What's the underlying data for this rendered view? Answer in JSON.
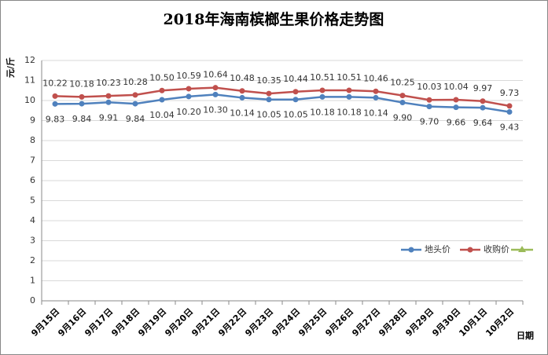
{
  "chart_data": {
    "type": "line",
    "title": "2018年海南槟榔生果价格走势图",
    "ylabel": "元/斤",
    "xlabel": "日期",
    "categories": [
      "9月15日",
      "9月16日",
      "9月17日",
      "9月18日",
      "9月19日",
      "9月20日",
      "9月21日",
      "9月22日",
      "9月23日",
      "9月24日",
      "9月25日",
      "9月26日",
      "9月27日",
      "9月28日",
      "9月29日",
      "9月30日",
      "10月1日",
      "10月2日"
    ],
    "series": [
      {
        "name": "地头价",
        "color": "#4f81bd",
        "label_position": "below",
        "values": [
          9.83,
          9.84,
          9.91,
          9.84,
          10.04,
          10.2,
          10.3,
          10.14,
          10.05,
          10.05,
          10.18,
          10.18,
          10.14,
          9.9,
          9.7,
          9.66,
          9.64,
          9.43
        ],
        "value_labels": [
          "9.83",
          "9.84",
          "9.91",
          "9.84",
          "10.04",
          "10.20",
          "10.30",
          "10.14",
          "10.05",
          "10.05",
          "10.18",
          "10.18",
          "10.14",
          "9.90",
          "9.70",
          "9.66",
          "9.64",
          "9.43"
        ]
      },
      {
        "name": "收购价",
        "color": "#c0504d",
        "label_position": "above",
        "values": [
          10.22,
          10.18,
          10.23,
          10.28,
          10.5,
          10.59,
          10.64,
          10.48,
          10.35,
          10.44,
          10.51,
          10.51,
          10.46,
          10.25,
          10.03,
          10.04,
          9.97,
          9.73
        ],
        "value_labels": [
          "10.22",
          "10.18",
          "10.23",
          "10.28",
          "10.50",
          "10.59",
          "10.64",
          "10.48",
          "10.35",
          "10.44",
          "10.51",
          "10.51",
          "10.46",
          "10.25",
          "10.03",
          "10.04",
          "9.97",
          "9.73"
        ]
      }
    ],
    "ylim": [
      0,
      12
    ],
    "yticks": [
      0,
      1,
      2,
      3,
      4,
      5,
      6,
      7,
      8,
      9,
      10,
      11,
      12
    ],
    "grid": true
  }
}
